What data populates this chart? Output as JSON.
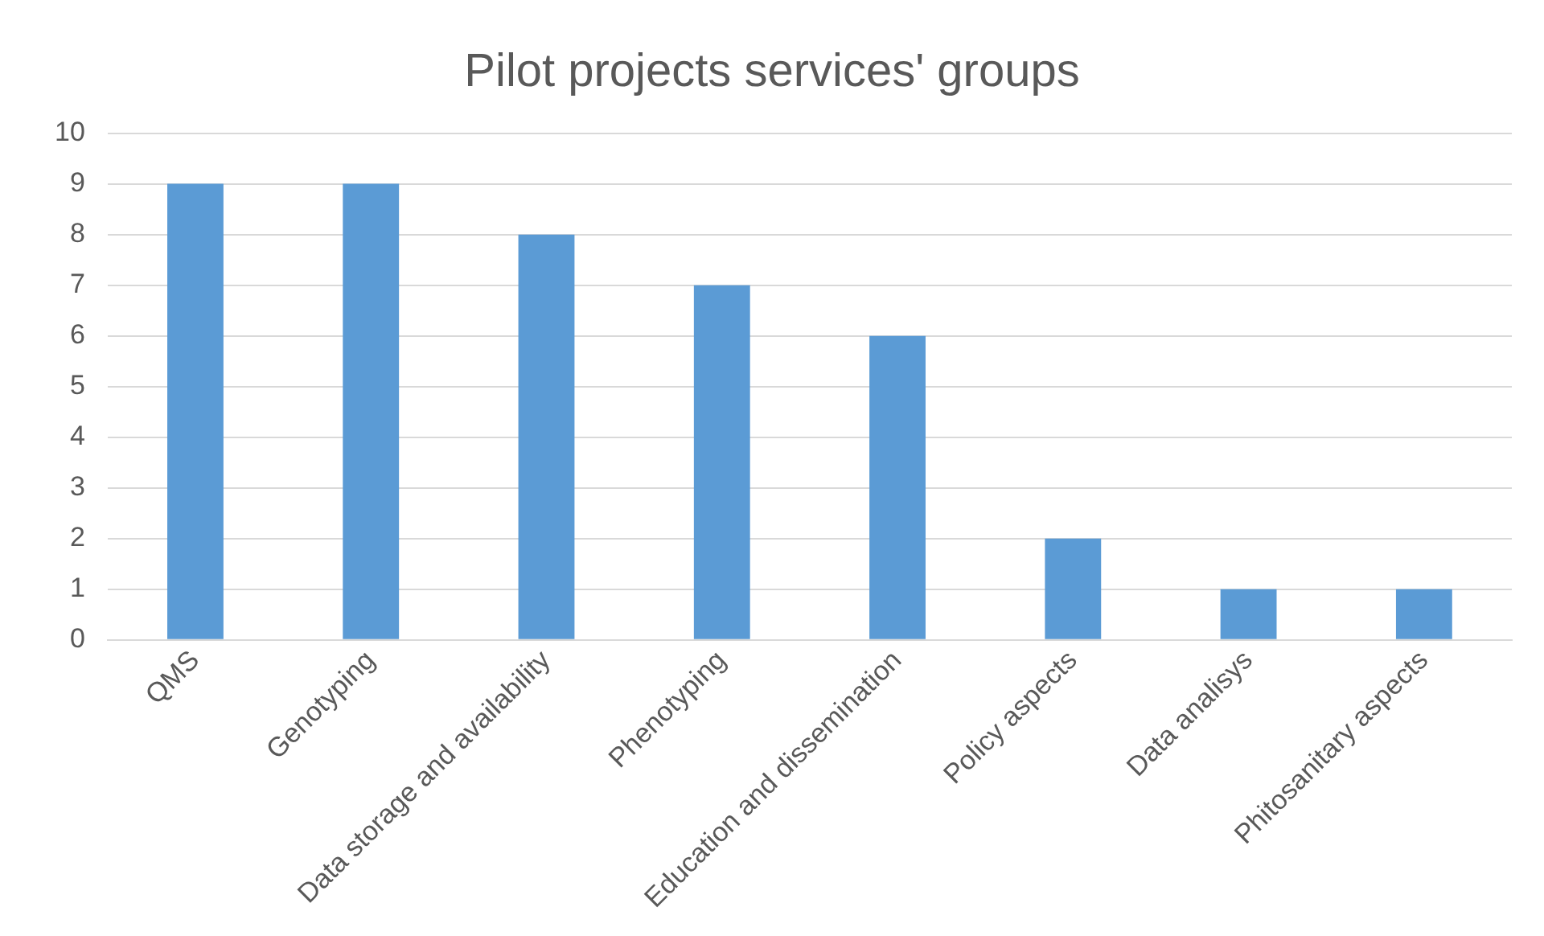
{
  "chart_data": {
    "type": "bar",
    "title": "Pilot projects services' groups",
    "categories": [
      "QMS",
      "Genotyping",
      "Data storage and availability",
      "Phenotyping",
      "Education and dissemination",
      "Policy aspects",
      "Data analisys",
      "Phitosanitary aspects"
    ],
    "values": [
      9,
      9,
      8,
      7,
      6,
      2,
      1,
      1
    ],
    "color": "#5b9bd5",
    "ylim": [
      0,
      10
    ],
    "yticks": [
      0,
      1,
      2,
      3,
      4,
      5,
      6,
      7,
      8,
      9,
      10
    ],
    "grid": "y",
    "legend": false
  }
}
